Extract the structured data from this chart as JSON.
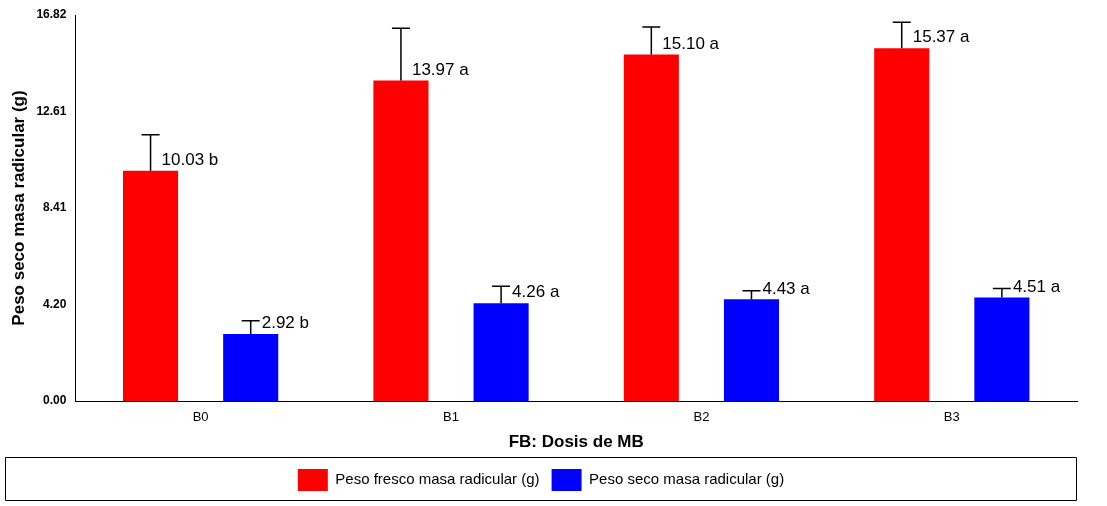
{
  "chart_data": {
    "type": "bar",
    "xlabel": "FB: Dosis de MB",
    "ylabel": "Peso seco masa radicular (g)",
    "categories": [
      "B0",
      "B1",
      "B2",
      "B3"
    ],
    "series": [
      {
        "name": "Peso fresco masa radicular (g)",
        "color": "#ff0000",
        "values": [
          10.03,
          13.97,
          15.1,
          15.37
        ],
        "errors": [
          [
            10.03,
            11.6
          ],
          [
            13.97,
            16.24
          ],
          [
            15.1,
            16.3
          ],
          [
            15.37,
            16.5
          ]
        ],
        "value_labels": [
          "10.03 b",
          "13.97 a",
          "15.10 a",
          "15.37 a"
        ]
      },
      {
        "name": "Peso seco masa radicular (g)",
        "color": "#0000ff",
        "values": [
          2.92,
          4.26,
          4.43,
          4.51
        ],
        "errors": [
          [
            2.92,
            3.5
          ],
          [
            4.26,
            5.0
          ],
          [
            4.43,
            4.8
          ],
          [
            4.51,
            4.9
          ]
        ],
        "value_labels": [
          "2.92 b",
          "4.26 a",
          "4.43 a",
          "4.51 a"
        ]
      }
    ],
    "ylim": [
      0,
      16.82
    ],
    "yticks": [
      {
        "value": 0,
        "label": "0.00"
      },
      {
        "value": 4.2,
        "label": "4.20"
      },
      8.41,
      12.61,
      16.82
    ],
    "grid": false,
    "legend": "bottom"
  }
}
